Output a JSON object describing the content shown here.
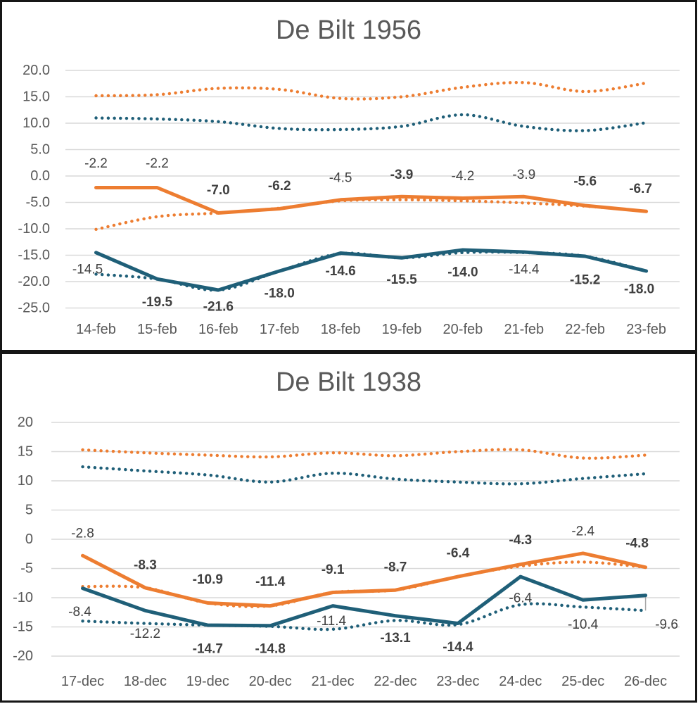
{
  "colors": {
    "orange": "#ED7D31",
    "blue": "#1F5F78",
    "grid": "#D9D9D9",
    "axis_text": "#595959",
    "label_text": "#404040",
    "title_text": "#595959",
    "connector": "#A6A6A6"
  },
  "charts": [
    {
      "title": "De Bilt 1956",
      "type": "line",
      "y_ticks": [
        "20.0",
        "15.0",
        "10.0",
        "5.0",
        "0.0",
        "-5.0",
        "-10.0",
        "-15.0",
        "-20.0",
        "-25.0"
      ],
      "y_range": [
        20,
        -25
      ],
      "categories": [
        "14-feb",
        "15-feb",
        "16-feb",
        "17-feb",
        "18-feb",
        "19-feb",
        "20-feb",
        "21-feb",
        "22-feb",
        "23-feb"
      ],
      "series": [
        {
          "name": "record-high-max-dotted",
          "color": "orange",
          "style": "dotted",
          "values": [
            15.2,
            15.4,
            16.6,
            16.4,
            14.7,
            15.0,
            16.8,
            17.7,
            16.0,
            17.6
          ]
        },
        {
          "name": "record-high-min-dotted",
          "color": "blue",
          "style": "dotted",
          "values": [
            11.0,
            10.8,
            10.3,
            9.0,
            8.8,
            9.4,
            11.6,
            9.4,
            8.6,
            10.1
          ]
        },
        {
          "name": "record-low-max-dotted",
          "color": "orange",
          "style": "dotted",
          "values": [
            -10.1,
            -7.7,
            -7.0,
            -6.1,
            -4.7,
            -4.5,
            -4.7,
            -5.1,
            -5.7,
            -6.7
          ]
        },
        {
          "name": "record-low-min-dotted",
          "color": "blue",
          "style": "dotted",
          "values": [
            -18.6,
            -19.5,
            -21.6,
            -18.0,
            -14.7,
            -15.5,
            -14.5,
            -14.5,
            -15.2,
            -18.0
          ]
        },
        {
          "name": "max-temp-1956",
          "color": "orange",
          "style": "solid",
          "values": [
            -2.2,
            -2.2,
            -7.0,
            -6.2,
            -4.5,
            -3.9,
            -4.2,
            -3.9,
            -5.6,
            -6.7
          ],
          "labels": [
            {
              "text": "-2.2",
              "bold": false,
              "dx": 0,
              "dy": -34
            },
            {
              "text": "-2.2",
              "bold": false,
              "dx": 0,
              "dy": -34
            },
            {
              "text": "-7.0",
              "bold": true,
              "dx": 0,
              "dy": -32
            },
            {
              "text": "-6.2",
              "bold": true,
              "dx": 0,
              "dy": -32
            },
            {
              "text": "-4.5",
              "bold": false,
              "dx": 0,
              "dy": -31
            },
            {
              "text": "-3.9",
              "bold": true,
              "dx": 0,
              "dy": -31
            },
            {
              "text": "-4.2",
              "bold": false,
              "dx": 0,
              "dy": -31
            },
            {
              "text": "-3.9",
              "bold": false,
              "dx": 0,
              "dy": -31
            },
            {
              "text": "-5.6",
              "bold": true,
              "dx": 0,
              "dy": -34
            },
            {
              "text": "-6.7",
              "bold": true,
              "dx": -8,
              "dy": -32
            }
          ]
        },
        {
          "name": "min-temp-1956",
          "color": "blue",
          "style": "solid",
          "values": [
            -14.5,
            -19.5,
            -21.6,
            -18.0,
            -14.6,
            -15.5,
            -14.0,
            -14.4,
            -15.2,
            -18.0
          ],
          "labels": [
            {
              "text": "-14.5",
              "bold": false,
              "dx": -12,
              "dy": 24
            },
            {
              "text": "-19.5",
              "bold": true,
              "dx": 0,
              "dy": 33
            },
            {
              "text": "-21.6",
              "bold": true,
              "dx": 0,
              "dy": 24
            },
            {
              "text": "-18.0",
              "bold": true,
              "dx": 0,
              "dy": 32
            },
            {
              "text": "-14.6",
              "bold": true,
              "dx": 0,
              "dy": 26
            },
            {
              "text": "-15.5",
              "bold": true,
              "dx": 0,
              "dy": 31
            },
            {
              "text": "-14.0",
              "bold": true,
              "dx": 0,
              "dy": 32
            },
            {
              "text": "-14.4",
              "bold": false,
              "dx": 0,
              "dy": 25
            },
            {
              "text": "-15.2",
              "bold": true,
              "dx": 0,
              "dy": 34
            },
            {
              "text": "-18.0",
              "bold": true,
              "dx": -10,
              "dy": 26
            }
          ]
        }
      ]
    },
    {
      "title": "De Bilt 1938",
      "type": "line",
      "y_ticks": [
        "20",
        "15",
        "10",
        "5",
        "0",
        "-5",
        "-10",
        "-15",
        "-20"
      ],
      "y_range": [
        20,
        -20
      ],
      "categories": [
        "17-dec",
        "18-dec",
        "19-dec",
        "20-dec",
        "21-dec",
        "22-dec",
        "23-dec",
        "24-dec",
        "25-dec",
        "26-dec"
      ],
      "connector": {
        "index": 9,
        "from": -9.6,
        "to": -12.2
      },
      "series": [
        {
          "name": "record-high-max-dotted",
          "color": "orange",
          "style": "dotted",
          "values": [
            15.3,
            14.8,
            14.4,
            14.1,
            14.8,
            14.3,
            15.0,
            15.3,
            13.9,
            14.4
          ]
        },
        {
          "name": "record-high-min-dotted",
          "color": "blue",
          "style": "dotted",
          "values": [
            12.4,
            11.7,
            11.0,
            9.8,
            11.3,
            10.3,
            9.8,
            9.5,
            10.4,
            11.2
          ]
        },
        {
          "name": "record-low-max-dotted",
          "color": "orange",
          "style": "dotted",
          "values": [
            -8.1,
            -8.3,
            -10.9,
            -11.4,
            -9.1,
            -8.7,
            -6.4,
            -4.6,
            -3.9,
            -4.8
          ]
        },
        {
          "name": "record-low-min-dotted",
          "color": "blue",
          "style": "dotted",
          "values": [
            -14.0,
            -14.4,
            -14.7,
            -14.9,
            -15.4,
            -13.9,
            -14.6,
            -11.2,
            -11.6,
            -12.2
          ]
        },
        {
          "name": "max-temp-1938",
          "color": "orange",
          "style": "solid",
          "values": [
            -2.8,
            -8.3,
            -10.9,
            -11.4,
            -9.1,
            -8.7,
            -6.4,
            -4.3,
            -2.4,
            -4.8
          ],
          "labels": [
            {
              "text": "-2.8",
              "bold": false,
              "dx": 0,
              "dy": -31
            },
            {
              "text": "-8.3",
              "bold": true,
              "dx": 0,
              "dy": -32
            },
            {
              "text": "-10.9",
              "bold": true,
              "dx": 0,
              "dy": -33
            },
            {
              "text": "-11.4",
              "bold": true,
              "dx": 0,
              "dy": -34
            },
            {
              "text": "-9.1",
              "bold": true,
              "dx": 0,
              "dy": -32
            },
            {
              "text": "-8.7",
              "bold": true,
              "dx": 0,
              "dy": -32
            },
            {
              "text": "-6.4",
              "bold": true,
              "dx": 0,
              "dy": -33
            },
            {
              "text": "-4.3",
              "bold": true,
              "dx": 0,
              "dy": -34
            },
            {
              "text": "-2.4",
              "bold": false,
              "dx": 0,
              "dy": -31
            },
            {
              "text": "-4.8",
              "bold": true,
              "dx": -12,
              "dy": -34
            }
          ]
        },
        {
          "name": "min-temp-1938",
          "color": "blue",
          "style": "solid",
          "values": [
            -8.4,
            -12.2,
            -14.7,
            -14.8,
            -11.4,
            -13.1,
            -14.4,
            -6.4,
            -10.4,
            -9.6
          ],
          "labels": [
            {
              "text": "-8.4",
              "bold": false,
              "dx": -4,
              "dy": 34
            },
            {
              "text": "-12.2",
              "bold": false,
              "dx": 0,
              "dy": 33
            },
            {
              "text": "-14.7",
              "bold": true,
              "dx": 0,
              "dy": 34
            },
            {
              "text": "-14.8",
              "bold": true,
              "dx": 0,
              "dy": 33
            },
            {
              "text": "-11.4",
              "bold": false,
              "dx": -2,
              "dy": 22
            },
            {
              "text": "-13.1",
              "bold": true,
              "dx": 0,
              "dy": 32
            },
            {
              "text": "-14.4",
              "bold": true,
              "dx": 0,
              "dy": 34
            },
            {
              "text": "-6.4",
              "bold": false,
              "dx": 0,
              "dy": 31
            },
            {
              "text": "-10.4",
              "bold": false,
              "dx": 0,
              "dy": 35
            },
            {
              "text": "-9.6",
              "bold": false,
              "dx": 30,
              "dy": 42
            }
          ]
        }
      ]
    }
  ]
}
